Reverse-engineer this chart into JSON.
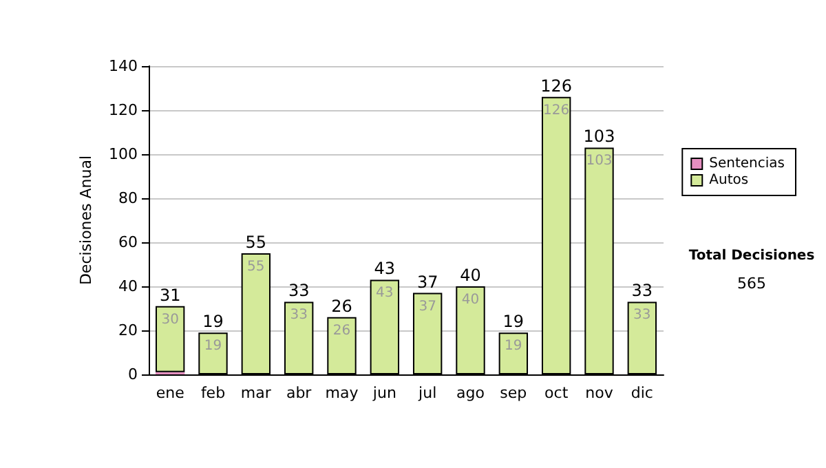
{
  "chart_data": {
    "type": "bar",
    "ylabel": "Decisiones Anual",
    "categories": [
      "ene",
      "feb",
      "mar",
      "abr",
      "may",
      "jun",
      "jul",
      "ago",
      "sep",
      "oct",
      "nov",
      "dic"
    ],
    "stacked": true,
    "series": [
      {
        "name": "Sentencias",
        "color": "#e58fc0",
        "values": [
          1,
          0,
          0,
          0,
          0,
          0,
          0,
          0,
          0,
          0,
          0,
          0
        ]
      },
      {
        "name": "Autos",
        "color": "#d4ea9a",
        "values": [
          30,
          19,
          55,
          33,
          26,
          43,
          37,
          40,
          19,
          126,
          103,
          33
        ],
        "value_labels": [
          "30",
          "19",
          "55",
          "33",
          "26",
          "43",
          "37",
          "40",
          "19",
          "126",
          "103",
          "33"
        ]
      }
    ],
    "totals": [
      "31",
      "19",
      "55",
      "33",
      "26",
      "43",
      "37",
      "40",
      "19",
      "126",
      "103",
      "33"
    ],
    "ylim": [
      0,
      140
    ],
    "yticks": [
      0,
      20,
      40,
      60,
      80,
      100,
      120,
      140
    ],
    "grid": "y",
    "legend": "right",
    "annotations": [
      "Total Decisiones",
      "565"
    ]
  }
}
